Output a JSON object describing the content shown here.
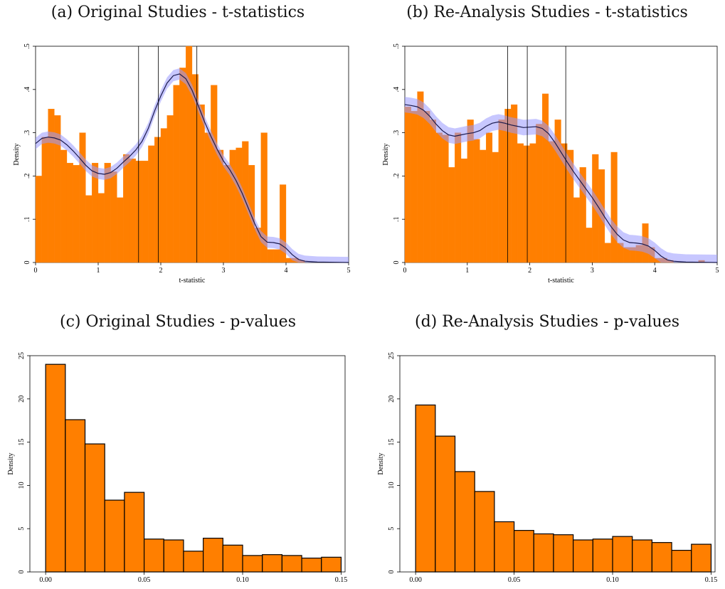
{
  "chart_data": [
    {
      "id": "a",
      "type": "bar",
      "title": "(a) Original Studies - t-statistics",
      "xlabel": "t-statistic",
      "ylabel": "Density",
      "xlim": [
        0,
        5
      ],
      "ylim": [
        0,
        0.5
      ],
      "xticks": [
        "0",
        "1",
        "2",
        "3",
        "4",
        "5"
      ],
      "yticks": [
        "0",
        ".1",
        ".2",
        ".3",
        ".4",
        ".5"
      ],
      "bar_color": "#ff7f00",
      "bin_width": 0.1,
      "bin_start": 0,
      "values": [
        0.2,
        0.29,
        0.355,
        0.34,
        0.26,
        0.23,
        0.225,
        0.3,
        0.155,
        0.23,
        0.16,
        0.23,
        0.21,
        0.15,
        0.25,
        0.24,
        0.235,
        0.235,
        0.27,
        0.29,
        0.31,
        0.34,
        0.41,
        0.45,
        0.5,
        0.435,
        0.365,
        0.3,
        0.41,
        0.26,
        0.225,
        0.26,
        0.265,
        0.28,
        0.225,
        0.08,
        0.3,
        0.03,
        0.03,
        0.18,
        0.01,
        0.01,
        0.005,
        0,
        0,
        0,
        0,
        0,
        0,
        0
      ],
      "kde": [
        [
          0,
          0.275
        ],
        [
          0.1,
          0.287
        ],
        [
          0.2,
          0.29
        ],
        [
          0.3,
          0.288
        ],
        [
          0.4,
          0.283
        ],
        [
          0.5,
          0.272
        ],
        [
          0.6,
          0.258
        ],
        [
          0.7,
          0.242
        ],
        [
          0.8,
          0.225
        ],
        [
          0.9,
          0.212
        ],
        [
          1.0,
          0.206
        ],
        [
          1.1,
          0.204
        ],
        [
          1.2,
          0.208
        ],
        [
          1.3,
          0.218
        ],
        [
          1.4,
          0.232
        ],
        [
          1.5,
          0.245
        ],
        [
          1.6,
          0.26
        ],
        [
          1.7,
          0.28
        ],
        [
          1.8,
          0.31
        ],
        [
          1.9,
          0.35
        ],
        [
          2.0,
          0.385
        ],
        [
          2.1,
          0.415
        ],
        [
          2.2,
          0.432
        ],
        [
          2.3,
          0.436
        ],
        [
          2.4,
          0.425
        ],
        [
          2.5,
          0.398
        ],
        [
          2.6,
          0.362
        ],
        [
          2.7,
          0.325
        ],
        [
          2.8,
          0.292
        ],
        [
          2.9,
          0.262
        ],
        [
          3.0,
          0.235
        ],
        [
          3.1,
          0.215
        ],
        [
          3.2,
          0.19
        ],
        [
          3.3,
          0.16
        ],
        [
          3.4,
          0.125
        ],
        [
          3.5,
          0.09
        ],
        [
          3.6,
          0.06
        ],
        [
          3.7,
          0.047
        ],
        [
          3.8,
          0.046
        ],
        [
          3.9,
          0.043
        ],
        [
          4.0,
          0.033
        ],
        [
          4.1,
          0.018
        ],
        [
          4.2,
          0.007
        ],
        [
          4.3,
          0.003
        ],
        [
          4.5,
          0.001
        ],
        [
          5.0,
          0
        ]
      ],
      "kde_color": "#1a1a4d",
      "band_color": "#9999ff",
      "band_halfwidth": 0.013,
      "reference_lines": [
        1.645,
        1.96,
        2.576
      ]
    },
    {
      "id": "b",
      "type": "bar",
      "title": "(b) Re-Analysis Studies - t-statistics",
      "xlabel": "t-statistic",
      "ylabel": "Density",
      "xlim": [
        0,
        5
      ],
      "ylim": [
        0,
        0.5
      ],
      "xticks": [
        "0",
        "1",
        "2",
        "3",
        "4",
        "5"
      ],
      "yticks": [
        "0",
        ".1",
        ".2",
        ".3",
        ".4",
        ".5"
      ],
      "bar_color": "#ff7f00",
      "bin_width": 0.1,
      "bin_start": 0,
      "values": [
        0.36,
        0.35,
        0.395,
        0.35,
        0.33,
        0.3,
        0.295,
        0.22,
        0.3,
        0.24,
        0.33,
        0.285,
        0.26,
        0.3,
        0.255,
        0.33,
        0.355,
        0.365,
        0.275,
        0.27,
        0.275,
        0.32,
        0.39,
        0.28,
        0.33,
        0.275,
        0.26,
        0.15,
        0.22,
        0.08,
        0.25,
        0.215,
        0.045,
        0.255,
        0.045,
        0.035,
        0.035,
        0.04,
        0.09,
        0.035,
        0.01,
        0.01,
        0.005,
        0,
        0,
        0,
        0,
        0.005,
        0,
        0
      ],
      "kde": [
        [
          0,
          0.365
        ],
        [
          0.1,
          0.363
        ],
        [
          0.2,
          0.36
        ],
        [
          0.3,
          0.352
        ],
        [
          0.4,
          0.338
        ],
        [
          0.5,
          0.32
        ],
        [
          0.6,
          0.305
        ],
        [
          0.7,
          0.295
        ],
        [
          0.8,
          0.292
        ],
        [
          0.9,
          0.295
        ],
        [
          1.0,
          0.298
        ],
        [
          1.1,
          0.3
        ],
        [
          1.2,
          0.305
        ],
        [
          1.3,
          0.315
        ],
        [
          1.4,
          0.322
        ],
        [
          1.5,
          0.325
        ],
        [
          1.6,
          0.322
        ],
        [
          1.7,
          0.318
        ],
        [
          1.8,
          0.315
        ],
        [
          1.9,
          0.312
        ],
        [
          2.0,
          0.313
        ],
        [
          2.1,
          0.314
        ],
        [
          2.2,
          0.31
        ],
        [
          2.3,
          0.298
        ],
        [
          2.4,
          0.278
        ],
        [
          2.5,
          0.255
        ],
        [
          2.6,
          0.232
        ],
        [
          2.7,
          0.21
        ],
        [
          2.8,
          0.19
        ],
        [
          2.9,
          0.17
        ],
        [
          3.0,
          0.15
        ],
        [
          3.1,
          0.128
        ],
        [
          3.2,
          0.105
        ],
        [
          3.3,
          0.083
        ],
        [
          3.4,
          0.065
        ],
        [
          3.5,
          0.052
        ],
        [
          3.6,
          0.046
        ],
        [
          3.7,
          0.045
        ],
        [
          3.8,
          0.043
        ],
        [
          3.9,
          0.038
        ],
        [
          4.0,
          0.028
        ],
        [
          4.1,
          0.015
        ],
        [
          4.2,
          0.006
        ],
        [
          4.3,
          0.003
        ],
        [
          4.5,
          0.001
        ],
        [
          5.0,
          0
        ]
      ],
      "kde_color": "#1a1a4d",
      "band_color": "#9999ff",
      "band_halfwidth": 0.018,
      "reference_lines": [
        1.645,
        1.96,
        2.576
      ]
    },
    {
      "id": "c",
      "type": "bar",
      "title": "(c) Original Studies - p-values",
      "xlabel": "",
      "ylabel": "Density",
      "xlim": [
        -0.008,
        0.152
      ],
      "ylim": [
        0,
        25
      ],
      "xticks": [
        "0.00",
        "0.05",
        "0.10",
        "0.15"
      ],
      "xtick_values": [
        0,
        0.05,
        0.1,
        0.15
      ],
      "yticks": [
        "0",
        "5",
        "10",
        "15",
        "20",
        "25"
      ],
      "bar_color": "#ff7f00",
      "bin_width": 0.01,
      "bin_start": 0,
      "values": [
        24,
        17.6,
        14.8,
        8.3,
        9.2,
        3.8,
        3.7,
        2.4,
        3.9,
        3.1,
        1.9,
        2.0,
        1.9,
        1.6,
        1.7
      ]
    },
    {
      "id": "d",
      "type": "bar",
      "title": "(d) Re-Analysis Studies - p-values",
      "xlabel": "",
      "ylabel": "Density",
      "xlim": [
        -0.008,
        0.152
      ],
      "ylim": [
        0,
        25
      ],
      "xticks": [
        "0.00",
        "0.05",
        "0.10",
        "0.15"
      ],
      "xtick_values": [
        0,
        0.05,
        0.1,
        0.15
      ],
      "yticks": [
        "0",
        "5",
        "10",
        "15",
        "20",
        "25"
      ],
      "bar_color": "#ff7f00",
      "bin_width": 0.01,
      "bin_start": 0,
      "values": [
        19.3,
        15.7,
        11.6,
        9.3,
        5.8,
        4.8,
        4.4,
        4.3,
        3.7,
        3.8,
        4.1,
        3.7,
        3.4,
        2.5,
        3.2
      ]
    }
  ]
}
